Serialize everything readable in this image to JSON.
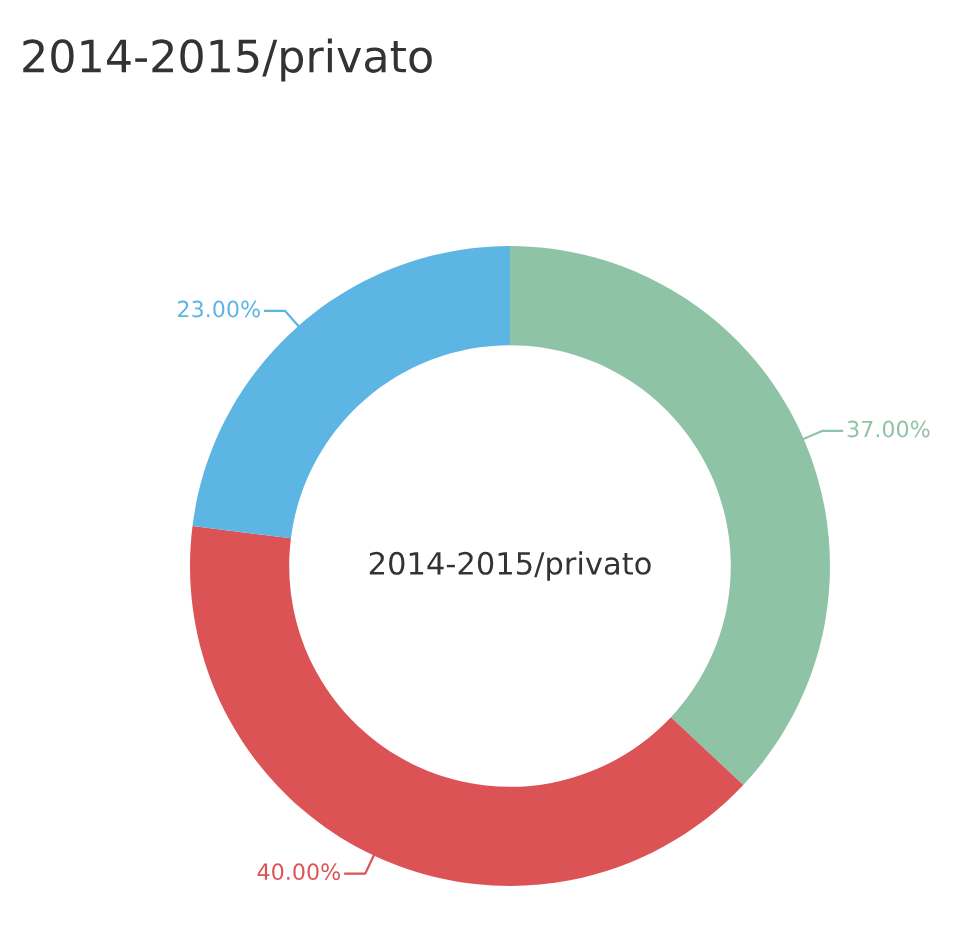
{
  "chart_data": {
    "type": "donut",
    "title": "2014-2015/privato",
    "annotations": [
      "2014-2015/privato"
    ],
    "categories": [
      null,
      null,
      null
    ],
    "values": [
      37,
      40,
      23
    ],
    "colors": [
      "#8fc3a6",
      "#dc5356",
      "#5db5e3"
    ],
    "value_labels": [
      "37.00%",
      "40.00%",
      "23.00%"
    ],
    "legend": false
  }
}
